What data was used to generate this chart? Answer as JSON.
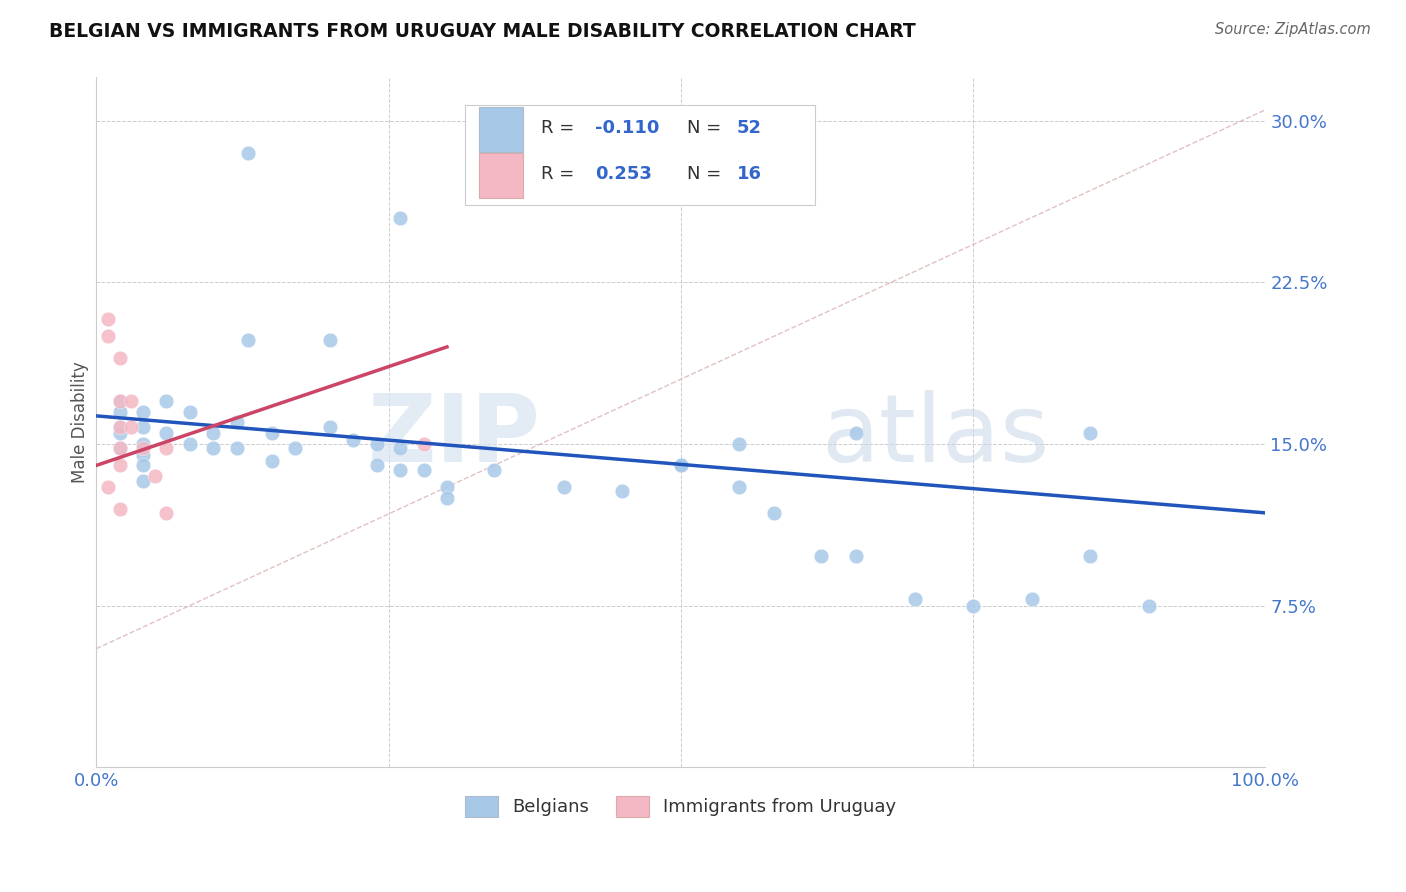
{
  "title": "BELGIAN VS IMMIGRANTS FROM URUGUAY MALE DISABILITY CORRELATION CHART",
  "source": "Source: ZipAtlas.com",
  "ylabel": "Male Disability",
  "xlim": [
    0.0,
    1.0
  ],
  "ylim": [
    0.0,
    0.32
  ],
  "yticks": [
    0.075,
    0.15,
    0.225,
    0.3
  ],
  "ytick_labels": [
    "7.5%",
    "15.0%",
    "22.5%",
    "30.0%"
  ],
  "xticks": [
    0.0,
    0.25,
    0.5,
    0.75,
    1.0
  ],
  "xtick_labels": [
    "0.0%",
    "",
    "",
    "",
    "100.0%"
  ],
  "grid_color": "#cccccc",
  "background_color": "#ffffff",
  "legend_blue_label": "Belgians",
  "legend_pink_label": "Immigrants from Uruguay",
  "R_blue": -0.11,
  "N_blue": 52,
  "R_pink": 0.253,
  "N_pink": 16,
  "blue_color": "#a8c8e8",
  "pink_color": "#f4b8c4",
  "blue_line_color": "#2255bb",
  "pink_line_color": "#cc4466",
  "dashed_line_color": "#ddbbbb",
  "watermark_bold": "ZIP",
  "watermark_light": "atlas",
  "blue_points_x": [
    0.13,
    0.26,
    0.13,
    0.2,
    0.02,
    0.02,
    0.02,
    0.02,
    0.02,
    0.04,
    0.04,
    0.04,
    0.04,
    0.04,
    0.04,
    0.06,
    0.06,
    0.08,
    0.08,
    0.1,
    0.1,
    0.12,
    0.12,
    0.15,
    0.15,
    0.17,
    0.2,
    0.22,
    0.24,
    0.24,
    0.26,
    0.26,
    0.28,
    0.3,
    0.3,
    0.34,
    0.4,
    0.45,
    0.5,
    0.55,
    0.58,
    0.62,
    0.65,
    0.7,
    0.75,
    0.8,
    0.85,
    0.9,
    0.5,
    0.55,
    0.65,
    0.85
  ],
  "blue_points_y": [
    0.285,
    0.255,
    0.198,
    0.198,
    0.17,
    0.165,
    0.158,
    0.155,
    0.148,
    0.165,
    0.158,
    0.15,
    0.145,
    0.14,
    0.133,
    0.17,
    0.155,
    0.165,
    0.15,
    0.155,
    0.148,
    0.16,
    0.148,
    0.155,
    0.142,
    0.148,
    0.158,
    0.152,
    0.15,
    0.14,
    0.148,
    0.138,
    0.138,
    0.13,
    0.125,
    0.138,
    0.13,
    0.128,
    0.14,
    0.13,
    0.118,
    0.098,
    0.098,
    0.078,
    0.075,
    0.078,
    0.098,
    0.075,
    0.14,
    0.15,
    0.155,
    0.155
  ],
  "pink_points_x": [
    0.01,
    0.01,
    0.01,
    0.02,
    0.02,
    0.02,
    0.02,
    0.02,
    0.02,
    0.03,
    0.03,
    0.04,
    0.05,
    0.06,
    0.06,
    0.28
  ],
  "pink_points_y": [
    0.208,
    0.2,
    0.13,
    0.19,
    0.17,
    0.158,
    0.148,
    0.14,
    0.12,
    0.17,
    0.158,
    0.148,
    0.135,
    0.148,
    0.118,
    0.15
  ],
  "blue_trend_x": [
    0.0,
    1.0
  ],
  "blue_trend_y": [
    0.163,
    0.118
  ],
  "pink_trend_x": [
    0.0,
    0.3
  ],
  "pink_trend_y": [
    0.14,
    0.195
  ],
  "dashed_trend_x": [
    0.0,
    1.0
  ],
  "dashed_trend_y": [
    0.055,
    0.305
  ]
}
